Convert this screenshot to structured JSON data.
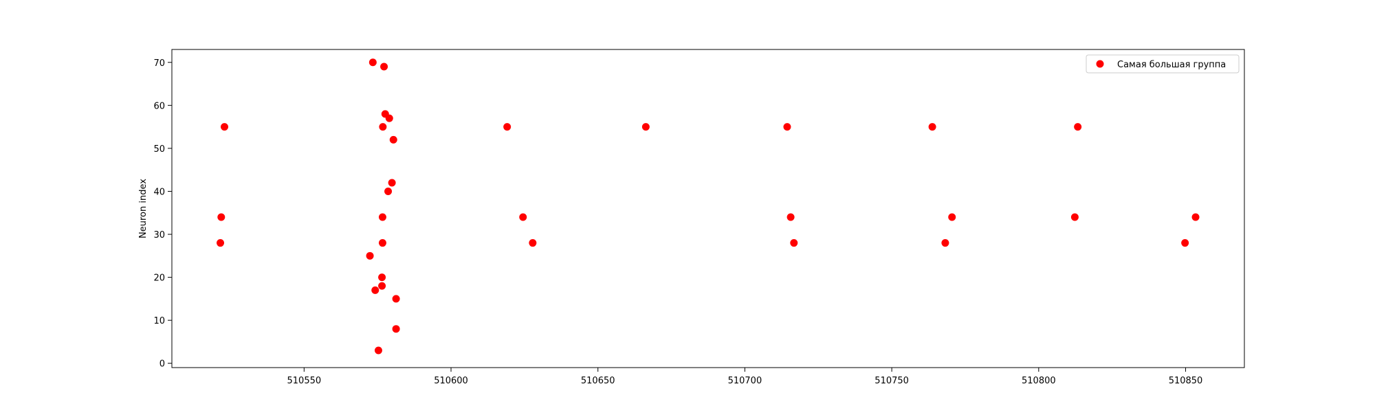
{
  "chart_data": {
    "type": "scatter",
    "title": "",
    "xlabel": "",
    "ylabel": "Neuron index",
    "xlim": [
      510505,
      510870
    ],
    "ylim": [
      -1,
      73
    ],
    "xticks": [
      510550,
      510600,
      510650,
      510700,
      510750,
      510800,
      510850
    ],
    "yticks": [
      0,
      10,
      20,
      30,
      40,
      50,
      60,
      70
    ],
    "grid": false,
    "legend_position": "top-right",
    "series": [
      {
        "name": "Самая большая группа",
        "color": "#ff0000",
        "marker": "circle",
        "points": [
          {
            "x": 510521.5,
            "y": 28
          },
          {
            "x": 510521.8,
            "y": 34
          },
          {
            "x": 510522.9,
            "y": 55
          },
          {
            "x": 510572.4,
            "y": 25
          },
          {
            "x": 510573.4,
            "y": 70
          },
          {
            "x": 510574.2,
            "y": 17
          },
          {
            "x": 510575.3,
            "y": 3
          },
          {
            "x": 510576.5,
            "y": 20
          },
          {
            "x": 510576.5,
            "y": 18
          },
          {
            "x": 510576.7,
            "y": 28
          },
          {
            "x": 510576.7,
            "y": 34
          },
          {
            "x": 510576.8,
            "y": 55
          },
          {
            "x": 510577.2,
            "y": 69
          },
          {
            "x": 510577.6,
            "y": 58
          },
          {
            "x": 510578.6,
            "y": 40
          },
          {
            "x": 510579.0,
            "y": 57
          },
          {
            "x": 510579.9,
            "y": 42
          },
          {
            "x": 510580.4,
            "y": 52
          },
          {
            "x": 510581.3,
            "y": 15
          },
          {
            "x": 510581.3,
            "y": 8
          },
          {
            "x": 510619.1,
            "y": 55
          },
          {
            "x": 510624.5,
            "y": 34
          },
          {
            "x": 510627.8,
            "y": 28
          },
          {
            "x": 510666.3,
            "y": 55
          },
          {
            "x": 510714.4,
            "y": 55
          },
          {
            "x": 510715.6,
            "y": 34
          },
          {
            "x": 510716.7,
            "y": 28
          },
          {
            "x": 510763.8,
            "y": 55
          },
          {
            "x": 510768.2,
            "y": 28
          },
          {
            "x": 510770.5,
            "y": 34
          },
          {
            "x": 510812.3,
            "y": 34
          },
          {
            "x": 510813.3,
            "y": 55
          },
          {
            "x": 510849.8,
            "y": 28
          },
          {
            "x": 510853.4,
            "y": 34
          }
        ]
      }
    ]
  }
}
